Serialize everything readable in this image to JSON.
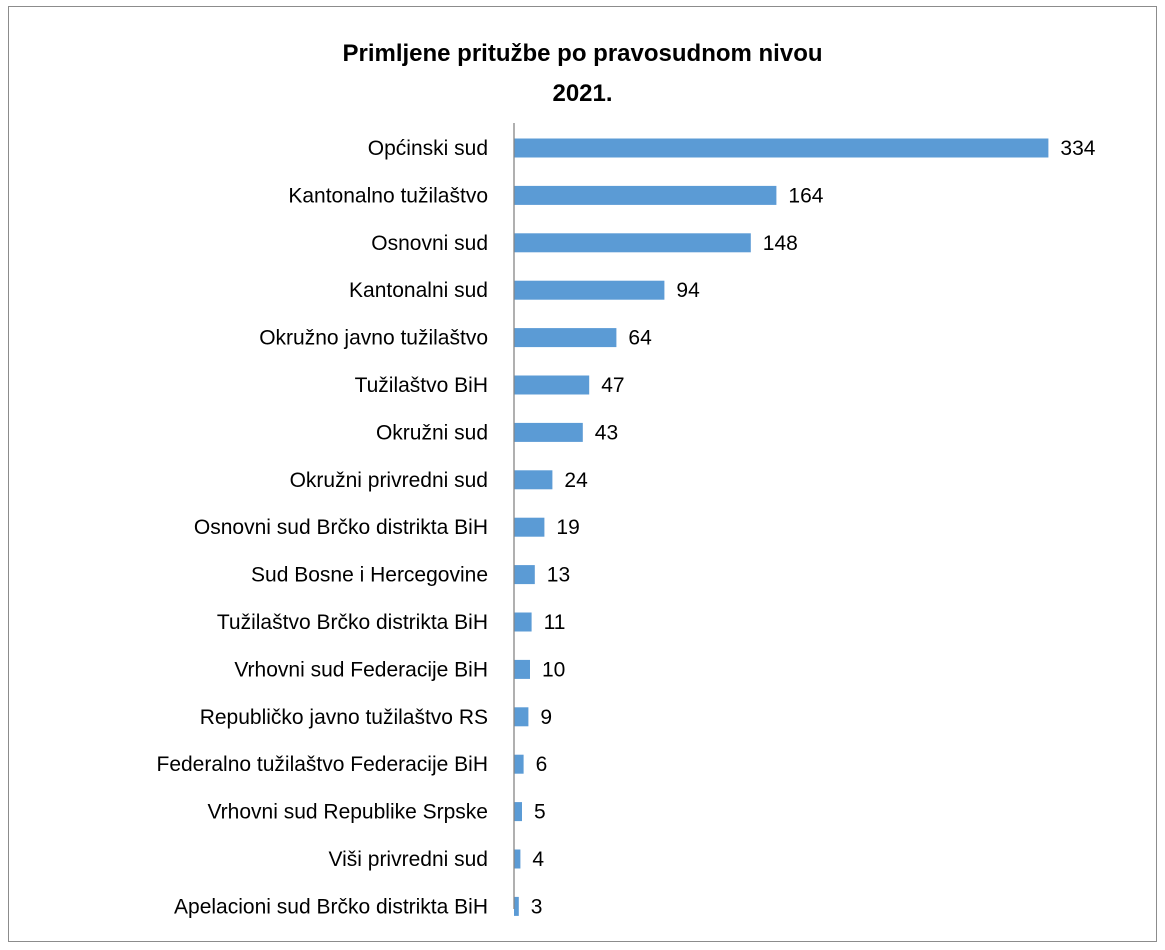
{
  "chart_data": {
    "type": "bar",
    "orientation": "horizontal",
    "title_line1": "Primljene pritužbe po pravosudnom nivou",
    "title_line2": "2021.",
    "xlabel": "",
    "ylabel": "",
    "grid": false,
    "legend": "none",
    "bar_color": "#5b9bd5",
    "axis_color": "#868686",
    "categories": [
      "Općinski sud",
      "Kantonalno tužilaštvo",
      "Osnovni sud",
      "Kantonalni sud",
      "Okružno javno tužilaštvo",
      "Tužilaštvo BiH",
      "Okružni sud",
      "Okružni privredni sud",
      "Osnovni sud Brčko distrikta BiH",
      "Sud Bosne i Hercegovine",
      "Tužilaštvo Brčko distrikta BiH",
      "Vrhovni sud Federacije BiH",
      "Republičko javno tužilaštvo RS",
      "Federalno tužilaštvo Federacije BiH",
      "Vrhovni sud Republike Srpske",
      "Viši privredni sud",
      "Apelacioni sud Brčko distrikta BiH"
    ],
    "values": [
      334,
      164,
      148,
      94,
      64,
      47,
      43,
      24,
      19,
      13,
      11,
      10,
      9,
      6,
      5,
      4,
      3
    ],
    "value_labels": [
      "334",
      "164",
      "148",
      "94",
      "64",
      "47",
      "43",
      "24",
      "19",
      "13",
      "11",
      "10",
      "9",
      "6",
      "5",
      "4",
      "3"
    ]
  }
}
